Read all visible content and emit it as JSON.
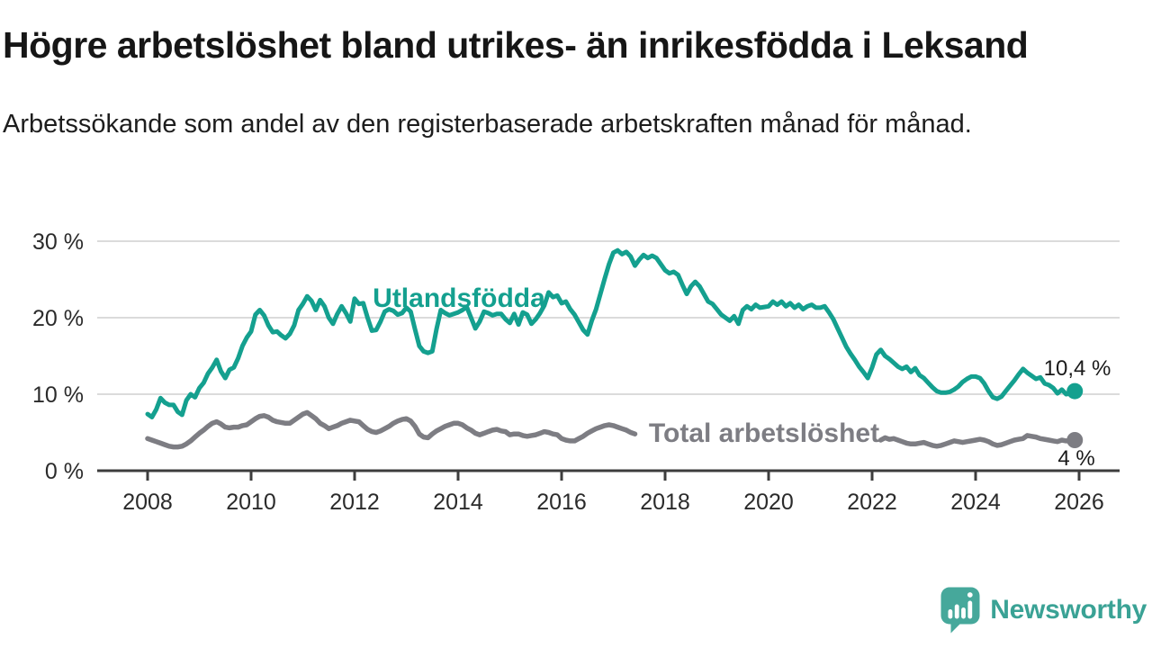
{
  "title": "Högre arbetslöshet bland utrikes- än inrikesfödda i Leksand",
  "subtitle": "Arbetssökande som andel av den registerbaserade arbetskraften månad för månad.",
  "brand": {
    "name": "Newsworthy",
    "icon": "newsworthy-speech-bubble-bar-chart-icon",
    "icon_color": "#46a89b",
    "text_color": "#3aa295"
  },
  "chart_data": {
    "type": "line",
    "unit": "%",
    "frequency": "monthly",
    "x_start": "2008-01",
    "ylim": [
      0,
      30
    ],
    "grid": true,
    "grid_color": "#dbdbdb",
    "axis_color": "#3d3d3d",
    "tick_label_color": "#2b2b2b",
    "annotation_color": "#1a1a1a",
    "x_ticks": [
      2008,
      2010,
      2012,
      2014,
      2016,
      2018,
      2020,
      2022,
      2024,
      2026
    ],
    "y_ticks": [
      {
        "value": 0,
        "label": "0 %"
      },
      {
        "value": 10,
        "label": "10 %"
      },
      {
        "value": 20,
        "label": "20 %"
      },
      {
        "value": 30,
        "label": "30 %"
      }
    ],
    "series": [
      {
        "name": "Utlandsfödda",
        "color": "#14a08f",
        "line_width": 5,
        "end_label": "10,4 %",
        "end_value": 10.4,
        "values": [
          7.4,
          7.0,
          8.0,
          9.5,
          8.9,
          8.6,
          8.6,
          7.7,
          7.3,
          9.2,
          10.0,
          9.6,
          10.8,
          11.5,
          12.7,
          13.5,
          14.5,
          13.0,
          12.1,
          13.2,
          13.5,
          14.7,
          16.3,
          17.4,
          18.2,
          20.4,
          21.0,
          20.3,
          19.0,
          18.1,
          18.2,
          17.7,
          17.3,
          17.9,
          19.0,
          21.0,
          21.8,
          22.8,
          22.2,
          21.0,
          22.3,
          21.5,
          20.0,
          19.2,
          20.5,
          21.5,
          20.6,
          19.5,
          22.5,
          21.8,
          21.9,
          20.0,
          18.3,
          18.4,
          19.5,
          20.8,
          21.1,
          20.9,
          20.4,
          20.6,
          21.3,
          20.8,
          18.5,
          16.3,
          15.6,
          15.4,
          15.6,
          18.5,
          21.0,
          20.6,
          20.3,
          20.5,
          20.7,
          21.0,
          21.4,
          20.0,
          18.6,
          19.5,
          20.8,
          20.6,
          20.3,
          20.5,
          20.5,
          19.8,
          19.3,
          20.5,
          19.1,
          20.7,
          20.4,
          19.2,
          19.8,
          20.6,
          21.6,
          23.3,
          22.7,
          22.9,
          21.9,
          22.1,
          21.1,
          20.4,
          19.4,
          18.4,
          17.8,
          19.6,
          21.1,
          23.1,
          25.1,
          27.0,
          28.5,
          28.8,
          28.3,
          28.6,
          28.0,
          26.8,
          27.6,
          28.2,
          27.8,
          28.1,
          27.8,
          27.0,
          26.2,
          25.8,
          26.0,
          25.6,
          24.3,
          23.1,
          24.1,
          24.7,
          24.1,
          23.1,
          22.1,
          21.8,
          21.1,
          20.4,
          20.0,
          19.6,
          20.2,
          19.2,
          21.0,
          21.5,
          21.1,
          21.7,
          21.3,
          21.4,
          21.5,
          22.1,
          21.7,
          22.1,
          21.5,
          21.9,
          21.3,
          21.7,
          21.1,
          21.5,
          21.7,
          21.3,
          21.3,
          21.5,
          20.7,
          19.8,
          18.6,
          17.4,
          16.2,
          15.3,
          14.5,
          13.6,
          12.9,
          12.1,
          13.5,
          15.2,
          15.8,
          15.0,
          14.6,
          14.1,
          13.6,
          13.3,
          13.6,
          12.9,
          13.4,
          12.5,
          12.1,
          11.5,
          10.9,
          10.4,
          10.2,
          10.2,
          10.3,
          10.6,
          11.0,
          11.6,
          12.0,
          12.3,
          12.3,
          12.1,
          11.4,
          10.4,
          9.6,
          9.4,
          9.7,
          10.4,
          11.1,
          11.8,
          12.6,
          13.3,
          12.8,
          12.4,
          12.0,
          12.2,
          11.4,
          11.2,
          10.8,
          10.1,
          10.6,
          10.0,
          10.1,
          10.4
        ]
      },
      {
        "name": "Total arbetslöshet",
        "color": "#7d7d83",
        "line_width": 5.5,
        "end_label": "4 %",
        "end_value": 4.0,
        "values": [
          4.2,
          4.0,
          3.8,
          3.6,
          3.4,
          3.2,
          3.1,
          3.1,
          3.2,
          3.5,
          3.9,
          4.4,
          4.9,
          5.3,
          5.8,
          6.2,
          6.4,
          6.1,
          5.7,
          5.6,
          5.7,
          5.7,
          5.9,
          6.0,
          6.4,
          6.8,
          7.1,
          7.2,
          7.0,
          6.6,
          6.4,
          6.3,
          6.2,
          6.2,
          6.6,
          7.0,
          7.4,
          7.6,
          7.2,
          6.8,
          6.2,
          5.9,
          5.5,
          5.7,
          5.9,
          6.2,
          6.4,
          6.6,
          6.5,
          6.4,
          5.9,
          5.4,
          5.1,
          5.0,
          5.2,
          5.5,
          5.8,
          6.2,
          6.5,
          6.7,
          6.8,
          6.5,
          5.8,
          4.8,
          4.4,
          4.3,
          4.8,
          5.2,
          5.5,
          5.8,
          6.0,
          6.2,
          6.2,
          6.0,
          5.6,
          5.3,
          4.9,
          4.7,
          4.9,
          5.1,
          5.3,
          5.4,
          5.2,
          5.1,
          4.7,
          4.8,
          4.8,
          4.6,
          4.5,
          4.6,
          4.7,
          4.9,
          5.1,
          5.0,
          4.8,
          4.7,
          4.2,
          4.0,
          3.9,
          3.9,
          4.2,
          4.5,
          4.9,
          5.2,
          5.5,
          5.7,
          5.9,
          6.0,
          5.9,
          5.7,
          5.5,
          5.3,
          5.0,
          4.8,
          null,
          null,
          null,
          null,
          null,
          null,
          null,
          null,
          null,
          null,
          null,
          null,
          null,
          null,
          null,
          null,
          null,
          null,
          null,
          null,
          null,
          null,
          null,
          null,
          null,
          null,
          null,
          null,
          null,
          null,
          null,
          null,
          null,
          null,
          null,
          null,
          null,
          null,
          null,
          null,
          null,
          null,
          null,
          null,
          null,
          null,
          null,
          null,
          null,
          null,
          null,
          null,
          null,
          null,
          null,
          null,
          4.0,
          4.3,
          4.1,
          4.2,
          4.0,
          3.8,
          3.6,
          3.5,
          3.5,
          3.6,
          3.7,
          3.5,
          3.3,
          3.2,
          3.3,
          3.5,
          3.7,
          3.9,
          3.8,
          3.7,
          3.8,
          3.9,
          4.0,
          4.1,
          4.0,
          3.8,
          3.5,
          3.3,
          3.4,
          3.6,
          3.8,
          4.0,
          4.1,
          4.2,
          4.6,
          4.5,
          4.4,
          4.2,
          4.1,
          4.0,
          3.9,
          3.8,
          4.0,
          3.9,
          3.9,
          4.0
        ]
      }
    ]
  }
}
